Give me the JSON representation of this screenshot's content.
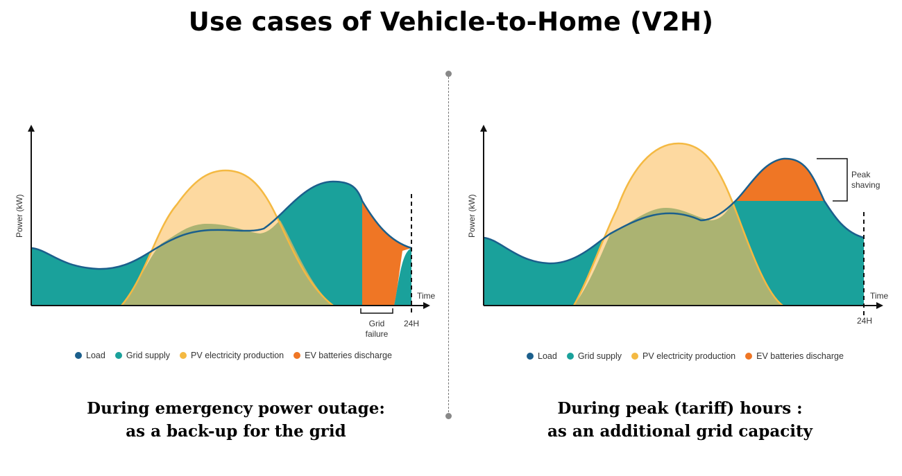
{
  "title": "Use cases of Vehicle-to-Home (V2H)",
  "colors": {
    "load": "#1b5f8c",
    "grid_supply": "#1aa19b",
    "pv": "#f4b942",
    "pv_fill": "#fdd9a0",
    "overlap": "#abb372",
    "ev": "#ef7625"
  },
  "legend": [
    {
      "label": "Load",
      "color": "#1b5f8c"
    },
    {
      "label": "Grid supply",
      "color": "#1aa19b"
    },
    {
      "label": "PV electricity production",
      "color": "#f4b942"
    },
    {
      "label": "EV batteries discharge",
      "color": "#ef7625"
    }
  ],
  "left_panel": {
    "ylabel": "Power (kW)",
    "xlabel": "Time",
    "end_label": "24H",
    "grid_failure_line1": "Grid",
    "grid_failure_line2": "failure",
    "caption_line1": "During emergency  power outage:",
    "caption_line2": "as a back-up for the grid"
  },
  "right_panel": {
    "ylabel": "Power (kW)",
    "xlabel": "Time",
    "end_label": "24H",
    "peak_line1": "Peak",
    "peak_line2": "shaving",
    "caption_line1": "During peak (tariff) hours :",
    "caption_line2": "as an additional grid capacity"
  }
}
